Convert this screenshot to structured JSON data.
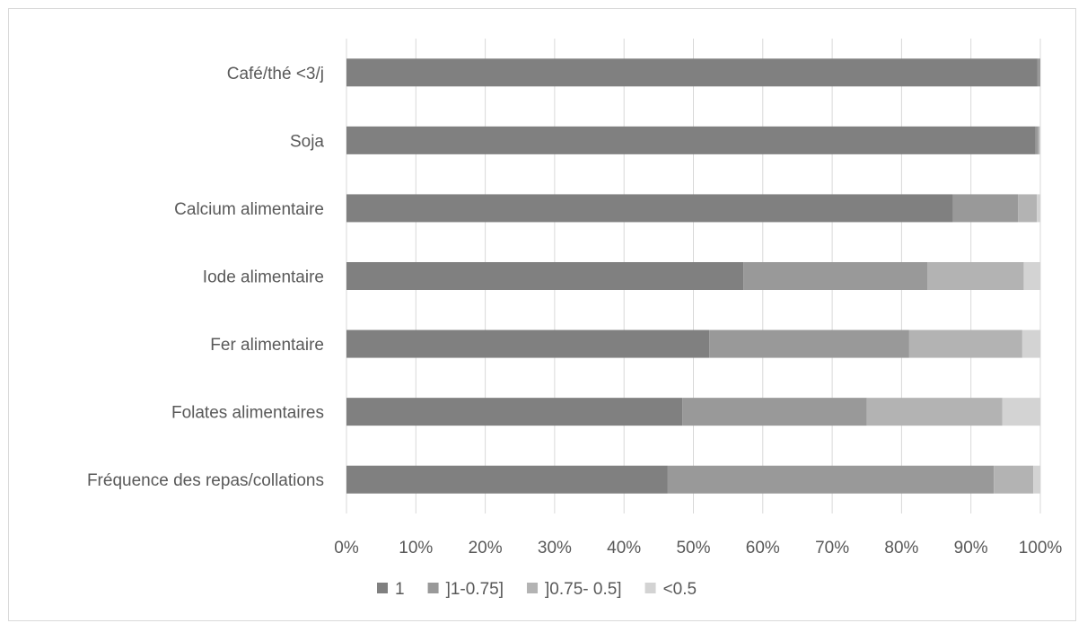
{
  "chart_data": {
    "type": "bar",
    "orientation": "horizontal",
    "stacked": "percent",
    "categories": [
      "Café/thé <3/j",
      "Soja",
      "Calcium alimentaire",
      "Iode alimentaire",
      "Fer alimentaire",
      "Folates alimentaires",
      "Fréquence des repas/collations"
    ],
    "series": [
      {
        "name": "1",
        "color": "#808080",
        "values": [
          99.6,
          99.3,
          87.4,
          57.2,
          52.3,
          48.4,
          46.3
        ]
      },
      {
        "name": "]1-0.75]",
        "color": "#999999",
        "values": [
          0.4,
          0.4,
          9.4,
          26.5,
          28.8,
          26.6,
          47.0
        ]
      },
      {
        "name": "]0.75- 0.5]",
        "color": "#b3b3b3",
        "values": [
          0.0,
          0.2,
          2.7,
          13.9,
          16.3,
          19.5,
          5.7
        ]
      },
      {
        "name": "<0.5",
        "color": "#d3d3d3",
        "values": [
          0.0,
          0.1,
          0.5,
          2.4,
          2.6,
          5.5,
          1.0
        ]
      }
    ],
    "x_ticks": [
      "0%",
      "10%",
      "20%",
      "30%",
      "40%",
      "50%",
      "60%",
      "70%",
      "80%",
      "90%",
      "100%"
    ],
    "xlim": [
      0,
      100
    ],
    "grid": true,
    "legend_position": "bottom",
    "title": "",
    "xlabel": "",
    "ylabel": ""
  }
}
